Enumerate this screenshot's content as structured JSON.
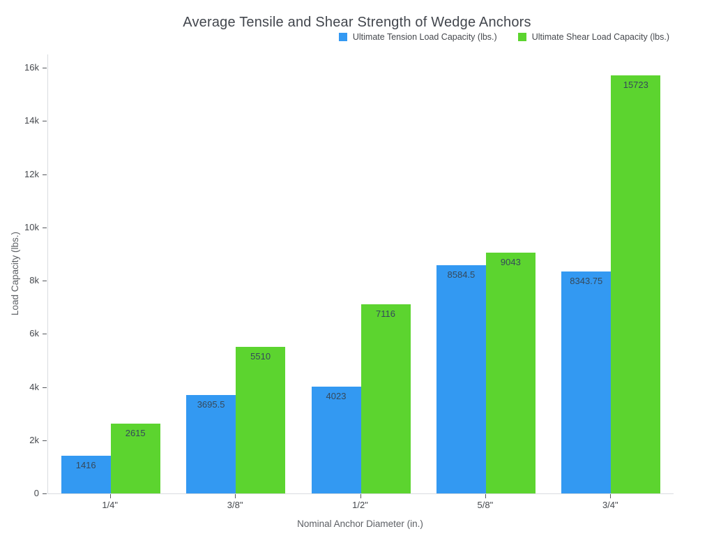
{
  "chart_data": {
    "type": "bar",
    "title": "Average Tensile and Shear Strength of Wedge Anchors",
    "xlabel": "Nominal Anchor Diameter (in.)",
    "ylabel": "Load Capacity (lbs.)",
    "categories": [
      "1/4\"",
      "3/8\"",
      "1/2\"",
      "5/8\"",
      "3/4\""
    ],
    "series": [
      {
        "name": "Ultimate Tension Load Capacity (lbs.)",
        "color": "#3399F2",
        "values": [
          1416,
          3695.5,
          4023,
          8584.5,
          8343.75
        ],
        "labels": [
          "1416",
          "3695.5",
          "4023",
          "8584.5",
          "8343.75"
        ]
      },
      {
        "name": "Ultimate Shear Load Capacity (lbs.)",
        "color": "#5CD42F",
        "values": [
          2615,
          5510,
          7116,
          9043,
          15723
        ],
        "labels": [
          "2615",
          "5510",
          "7116",
          "9043",
          "15723"
        ]
      }
    ],
    "ylim": [
      0,
      16577
    ],
    "yticks": [
      {
        "v": 0,
        "label": "0"
      },
      {
        "v": 2000,
        "label": "2k"
      },
      {
        "v": 4000,
        "label": "4k"
      },
      {
        "v": 6000,
        "label": "6k"
      },
      {
        "v": 8000,
        "label": "8k"
      },
      {
        "v": 10000,
        "label": "10k"
      },
      {
        "v": 12000,
        "label": "12k"
      },
      {
        "v": 14000,
        "label": "14k"
      },
      {
        "v": 16000,
        "label": "16k"
      }
    ],
    "grid": false,
    "legend_position": "top-right",
    "bar_label_position": "inside-top",
    "background": "#ffffff",
    "axis_line_color": "#d9dce0"
  }
}
